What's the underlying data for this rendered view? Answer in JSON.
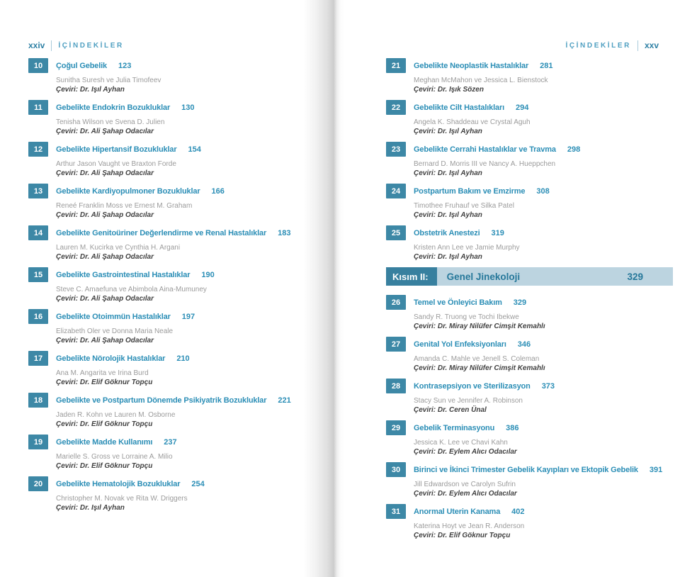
{
  "colors": {
    "accent_teal": "#3d88a6",
    "title_blue": "#2b8eb6",
    "header_roman": "#2f81a5",
    "header_label": "#4f9fc1",
    "section_label_bg": "#38809f",
    "section_bar_bg": "#bcd4e0",
    "section_text": "#26789a",
    "authors_gray": "#9b9b9b",
    "translator_dark": "#404040"
  },
  "left_page": {
    "page_number": "xxiv",
    "header_label": "İÇİNDEKİLER",
    "chapters": [
      {
        "num": "10",
        "title": "Çoğul Gebelik",
        "page": "123",
        "authors": "Sunitha Suresh ve Julia Timofeev",
        "translator": "Çeviri: Dr. Işıl Ayhan"
      },
      {
        "num": "11",
        "title": "Gebelikte Endokrin Bozukluklar",
        "page": "130",
        "authors": "Tenisha Wilson ve Svena D. Julien",
        "translator": "Çeviri: Dr. Ali Şahap Odacılar"
      },
      {
        "num": "12",
        "title": "Gebelikte Hipertansif Bozukluklar",
        "page": "154",
        "authors": "Arthur Jason Vaught ve Braxton Forde",
        "translator": "Çeviri: Dr. Ali Şahap Odacılar"
      },
      {
        "num": "13",
        "title": "Gebelikte Kardiyopulmoner Bozukluklar",
        "page": "166",
        "authors": "Reneé Franklin Moss ve Ernest M. Graham",
        "translator": "Çeviri: Dr. Ali Şahap Odacılar"
      },
      {
        "num": "14",
        "title": "Gebelikte Genitoüriner Değerlendirme ve Renal Hastalıklar",
        "page": "183",
        "authors": "Lauren M. Kucirka ve Cynthia H. Argani",
        "translator": "Çeviri: Dr. Ali Şahap Odacılar"
      },
      {
        "num": "15",
        "title": "Gebelikte Gastrointestinal Hastalıklar",
        "page": "190",
        "authors": "Steve C. Amaefuna ve Abimbola Aina-Mumuney",
        "translator": "Çeviri: Dr. Ali Şahap Odacılar"
      },
      {
        "num": "16",
        "title": "Gebelikte Otoimmün Hastalıklar",
        "page": "197",
        "authors": "Elizabeth Oler ve Donna Maria Neale",
        "translator": "Çeviri: Dr. Ali Şahap Odacılar"
      },
      {
        "num": "17",
        "title": "Gebelikte Nörolojik Hastalıklar",
        "page": "210",
        "authors": "Ana M. Angarita ve Irina Burd",
        "translator": "Çeviri: Dr. Elif Göknur Topçu"
      },
      {
        "num": "18",
        "title": "Gebelikte ve Postpartum Dönemde Psikiyatrik Bozukluklar",
        "page": "221",
        "authors": "Jaden R. Kohn ve Lauren M. Osborne",
        "translator": "Çeviri: Dr. Elif Göknur Topçu"
      },
      {
        "num": "19",
        "title": "Gebelikte Madde Kullanımı",
        "page": "237",
        "authors": "Marielle S. Gross ve Lorraine A. Milio",
        "translator": "Çeviri: Dr. Elif Göknur Topçu"
      },
      {
        "num": "20",
        "title": "Gebelikte Hematolojik Bozukluklar",
        "page": "254",
        "authors": "Christopher M. Novak ve Rita W. Driggers",
        "translator": "Çeviri: Dr. Işıl Ayhan"
      }
    ]
  },
  "right_page": {
    "page_number": "xxv",
    "header_label": "İÇİNDEKİLER",
    "chapters_top": [
      {
        "num": "21",
        "title": "Gebelikte Neoplastik Hastalıklar",
        "page": "281",
        "authors": "Meghan McMahon ve Jessica L. Bienstock",
        "translator": "Çeviri: Dr. Işık Sözen"
      },
      {
        "num": "22",
        "title": "Gebelikte Cilt Hastalıkları",
        "page": "294",
        "authors": "Angela K. Shaddeau ve Crystal Aguh",
        "translator": "Çeviri: Dr. Işıl Ayhan"
      },
      {
        "num": "23",
        "title": "Gebelikte Cerrahi Hastalıklar ve Travma",
        "page": "298",
        "authors": "Bernard D. Morris III ve Nancy A. Hueppchen",
        "translator": "Çeviri: Dr. Işıl Ayhan"
      },
      {
        "num": "24",
        "title": "Postpartum Bakım ve Emzirme",
        "page": "308",
        "authors": "Timothee Fruhauf ve Silka Patel",
        "translator": "Çeviri: Dr. Işıl Ayhan"
      },
      {
        "num": "25",
        "title": "Obstetrik Anestezi",
        "page": "319",
        "authors": "Kristen Ann Lee ve Jamie Murphy",
        "translator": "Çeviri: Dr. Işıl Ayhan"
      }
    ],
    "section": {
      "label": "Kısım II:",
      "title": "Genel Jinekoloji",
      "page": "329"
    },
    "chapters_bottom": [
      {
        "num": "26",
        "title": "Temel ve Önleyici Bakım",
        "page": "329",
        "authors": "Sandy R. Truong ve Tochi Ibekwe",
        "translator": "Çeviri: Dr. Miray Nilüfer Cimşit Kemahlı"
      },
      {
        "num": "27",
        "title": "Genital Yol Enfeksiyonları",
        "page": "346",
        "authors": "Amanda C. Mahle ve Jenell S. Coleman",
        "translator": "Çeviri: Dr. Miray Nilüfer Cimşit Kemahlı"
      },
      {
        "num": "28",
        "title": "Kontrasepsiyon ve Sterilizasyon",
        "page": "373",
        "authors": "Stacy Sun ve Jennifer A. Robinson",
        "translator": "Çeviri: Dr. Ceren Ünal"
      },
      {
        "num": "29",
        "title": "Gebelik Terminasyonu",
        "page": "386",
        "authors": "Jessica K. Lee ve Chavi Kahn",
        "translator": "Çeviri: Dr. Eylem Alıcı Odacılar"
      },
      {
        "num": "30",
        "title": "Birinci ve İkinci Trimester Gebelik Kayıpları ve Ektopik Gebelik",
        "page": "391",
        "authors": "Jill Edwardson ve Carolyn Sufrin",
        "translator": "Çeviri: Dr. Eylem Alıcı Odacılar"
      },
      {
        "num": "31",
        "title": "Anormal Uterin Kanama",
        "page": "402",
        "authors": "Katerina Hoyt ve Jean R. Anderson",
        "translator": "Çeviri: Dr. Elif Göknur Topçu"
      }
    ]
  }
}
